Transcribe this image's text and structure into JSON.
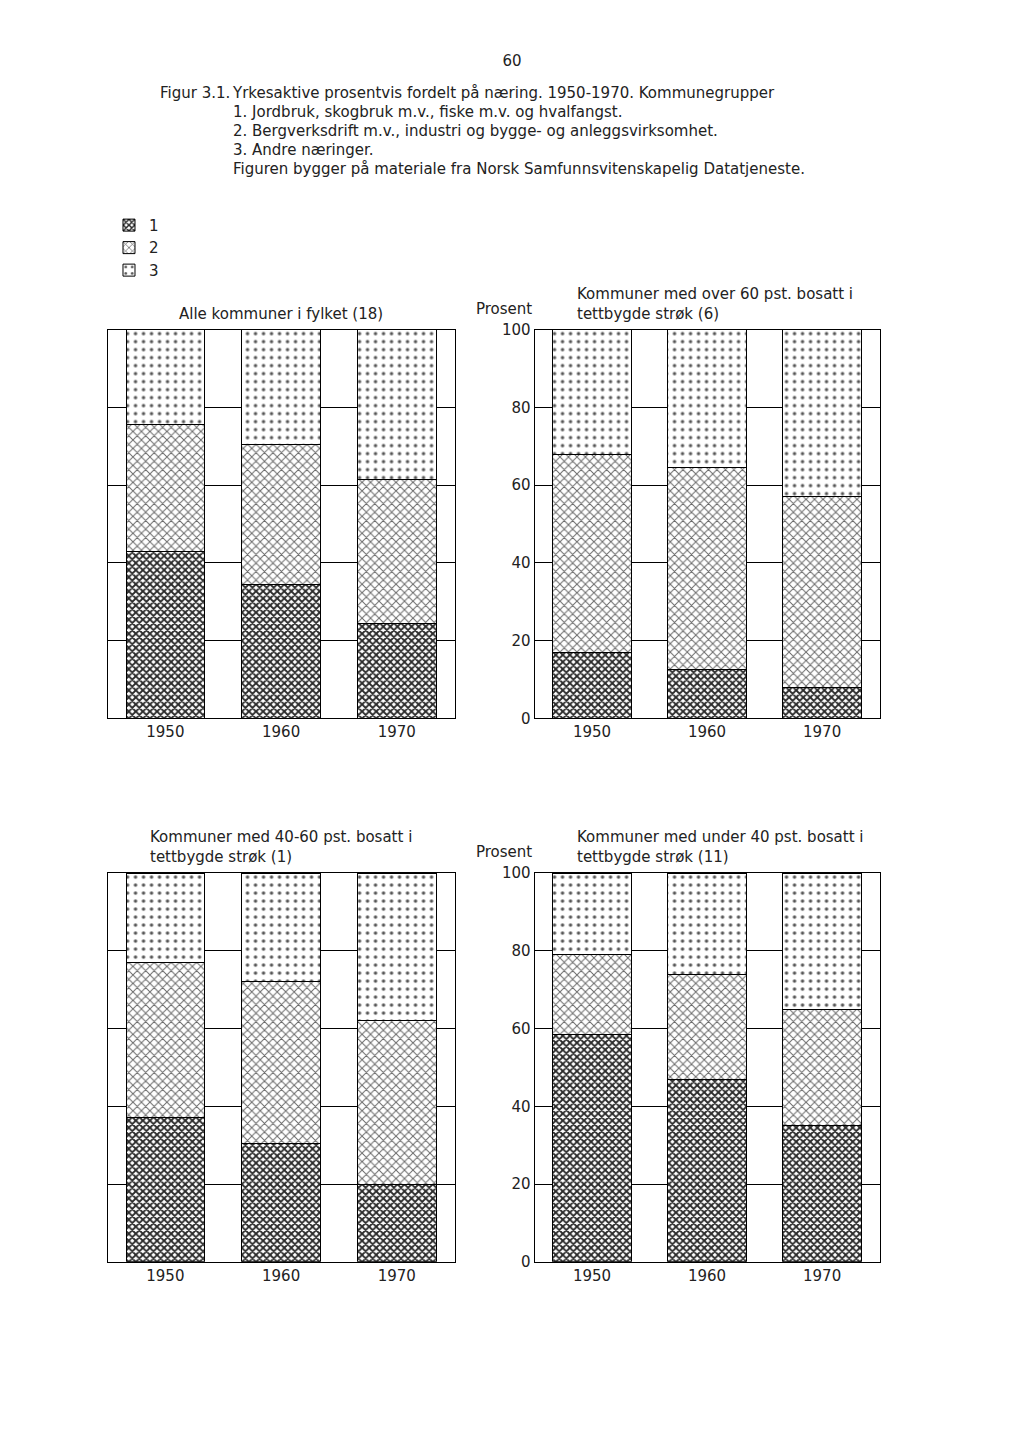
{
  "page_number": "60",
  "figure_label": "Figur 3.1.",
  "caption": [
    "Yrkesaktive prosentvis fordelt på næring. 1950-1970. Kommunegrupper",
    "1. Jordbruk, skogbruk m.v., fiske m.v. og hvalfangst.",
    "2. Bergverksdrift m.v., industri og bygge- og anleggsvirksomhet.",
    "3. Andre næringer.",
    "Figuren bygger på materiale fra Norsk Samfunnsvitenskapelig Datatjeneste."
  ],
  "chart_data": [
    {
      "type": "bar",
      "stacked": true,
      "grid": true,
      "tick_labels": "x",
      "legend": "top",
      "title": "Alle kommuner i fylket (18)",
      "categories": [
        "1950",
        "1960",
        "1970"
      ],
      "series": [
        {
          "name": "1",
          "color": "#2a2a2a",
          "values": [
            43,
            34.5,
            24.5
          ]
        },
        {
          "name": "2",
          "color": "#6a6a6a",
          "values": [
            32.5,
            36,
            37
          ]
        },
        {
          "name": "3",
          "color": "#555555",
          "values": [
            24.5,
            29.5,
            38.5
          ]
        }
      ],
      "ylim": [
        0,
        100
      ],
      "yticks": [
        0,
        20,
        40,
        60,
        80,
        100
      ]
    },
    {
      "type": "bar",
      "stacked": true,
      "grid": true,
      "title": "Kommuner med over 60 pst. bosatt i\ntettbygde strøk (6)",
      "ylabel": "Prosent",
      "categories": [
        "1950",
        "1960",
        "1970"
      ],
      "series": [
        {
          "name": "1",
          "color": "#2a2a2a",
          "values": [
            17,
            12.5,
            8
          ]
        },
        {
          "name": "2",
          "color": "#6a6a6a",
          "values": [
            51,
            52,
            49
          ]
        },
        {
          "name": "3",
          "color": "#555555",
          "values": [
            32,
            35.5,
            43
          ]
        }
      ],
      "ylim": [
        0,
        100
      ],
      "yticks": [
        0,
        20,
        40,
        60,
        80,
        100
      ]
    },
    {
      "type": "bar",
      "stacked": true,
      "grid": true,
      "tick_labels": "x",
      "title": "Kommuner med 40-60 pst. bosatt i\ntettbygde strøk (1)",
      "categories": [
        "1950",
        "1960",
        "1970"
      ],
      "series": [
        {
          "name": "1",
          "color": "#2a2a2a",
          "values": [
            37,
            30.5,
            20
          ]
        },
        {
          "name": "2",
          "color": "#6a6a6a",
          "values": [
            40,
            41.5,
            42
          ]
        },
        {
          "name": "3",
          "color": "#555555",
          "values": [
            23,
            28,
            38
          ]
        }
      ],
      "ylim": [
        0,
        100
      ],
      "yticks": [
        0,
        20,
        40,
        60,
        80,
        100
      ]
    },
    {
      "type": "bar",
      "stacked": true,
      "grid": true,
      "title": "Kommuner med under 40 pst. bosatt i\ntettbygde strøk (11)",
      "ylabel": "Prosent",
      "categories": [
        "1950",
        "1960",
        "1970"
      ],
      "series": [
        {
          "name": "1",
          "color": "#2a2a2a",
          "values": [
            58.5,
            47,
            35
          ]
        },
        {
          "name": "2",
          "color": "#6a6a6a",
          "values": [
            20.5,
            27,
            30
          ]
        },
        {
          "name": "3",
          "color": "#555555",
          "values": [
            21,
            26,
            35
          ]
        }
      ],
      "ylim": [
        0,
        100
      ],
      "yticks": [
        0,
        20,
        40,
        60,
        80,
        100
      ]
    }
  ]
}
